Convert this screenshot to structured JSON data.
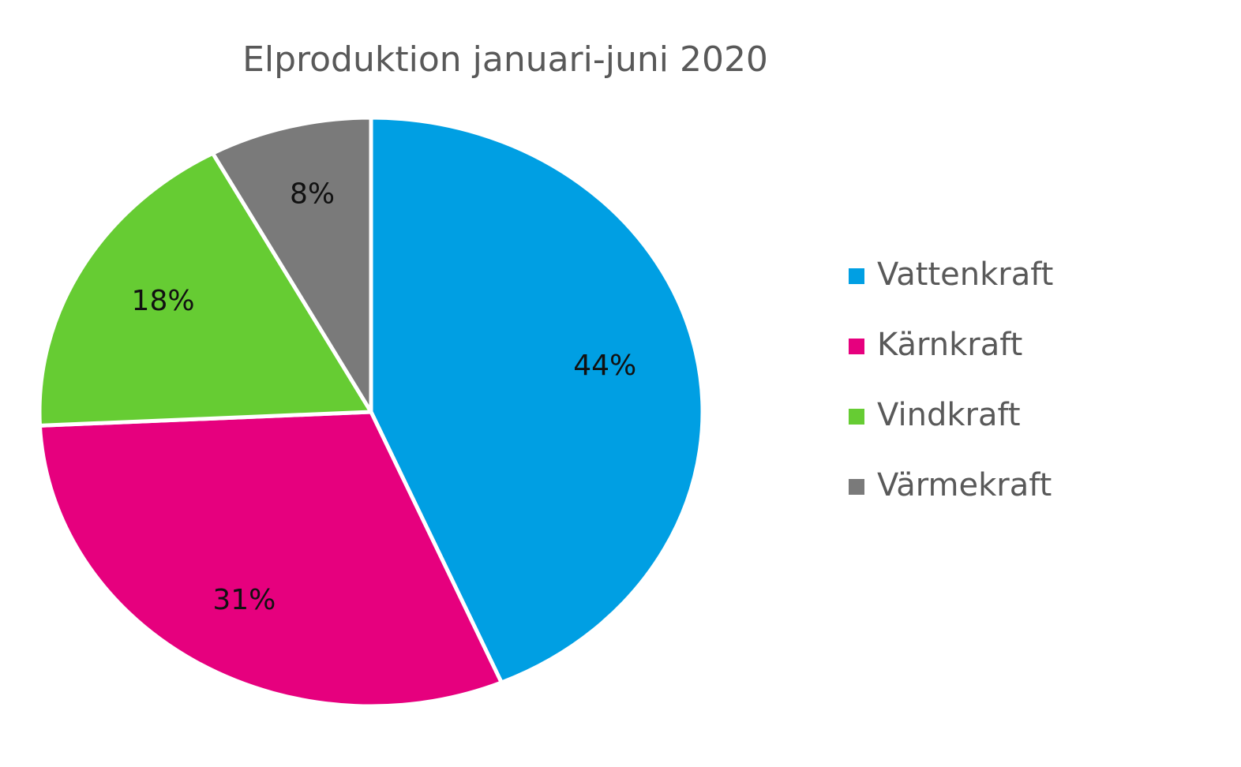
{
  "chart_data": {
    "type": "pie",
    "title": "Elproduktion januari-juni 2020",
    "slices": [
      {
        "name": "Vattenkraft",
        "value": 44,
        "label": "44%",
        "color": "#009FE3"
      },
      {
        "name": "Kärnkraft",
        "value": 31,
        "label": "31%",
        "color": "#E6007E"
      },
      {
        "name": "Vindkraft",
        "value": 18,
        "label": "18%",
        "color": "#66CC33"
      },
      {
        "name": "Värmekraft",
        "value": 8,
        "label": "8%",
        "color": "#7A7A7A"
      }
    ],
    "legend": {
      "placement": "right"
    },
    "start_angle": "12 o'clock",
    "direction": "clockwise"
  }
}
